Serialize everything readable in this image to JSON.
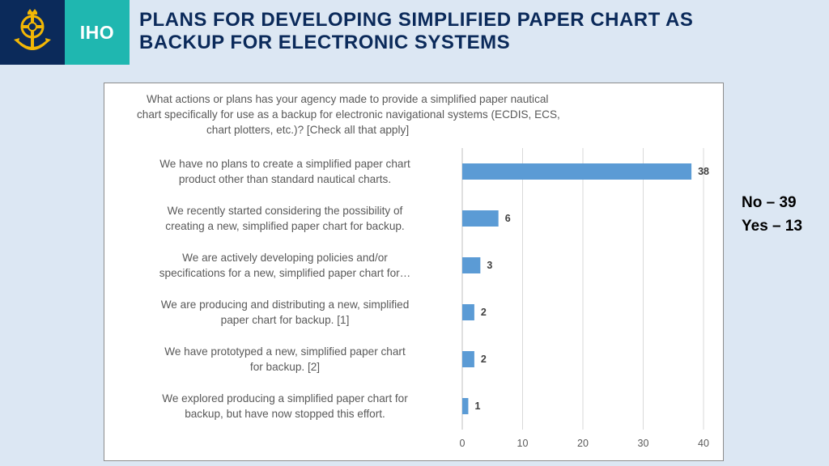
{
  "header": {
    "brand_text": "IHO",
    "title_line1": "PLANS FOR DEVELOPING SIMPLIFIED PAPER CHART AS",
    "title_line2": "BACKUP FOR ELECTRONIC SYSTEMS"
  },
  "summary": {
    "no": "No – 39",
    "yes": "Yes – 13"
  },
  "colors": {
    "bar": "#5b9bd5",
    "title": "#0b2a5a",
    "logo_bg": "#0b2a5a",
    "brand_bg": "#1fb7b0",
    "logo_gold": "#f2b705"
  },
  "icons": {
    "logo": "iho-anchor-emblem-icon"
  },
  "chart_data": {
    "type": "bar",
    "orientation": "horizontal",
    "question_lines": [
      "What actions or plans has your agency made to provide a simplified paper nautical",
      "chart specifically for use as a backup for electronic navigational systems (ECDIS, ECS,",
      "chart plotters, etc.)? [Check all that apply]"
    ],
    "categories": [
      [
        "We have no plans to create a simplified paper chart",
        "product other than standard nautical charts."
      ],
      [
        "We recently started considering the possibility of",
        "creating a new, simplified paper chart for backup."
      ],
      [
        "We are actively developing policies and/or",
        "specifications for a new, simplified paper chart for…"
      ],
      [
        "We are producing and distributing a new, simplified",
        "paper chart for backup. [1]"
      ],
      [
        "We have prototyped a new, simplified paper chart",
        "for backup. [2]"
      ],
      [
        "We explored producing a simplified paper chart for",
        "backup, but have now stopped this effort."
      ]
    ],
    "values": [
      38,
      6,
      3,
      2,
      2,
      1
    ],
    "data_labels": [
      "38",
      "6",
      "3",
      "2",
      "2",
      "1"
    ],
    "xlim": [
      0,
      40
    ],
    "x_ticks": [
      "0",
      "10",
      "20",
      "30",
      "40"
    ],
    "grid": true,
    "legend": "none"
  }
}
